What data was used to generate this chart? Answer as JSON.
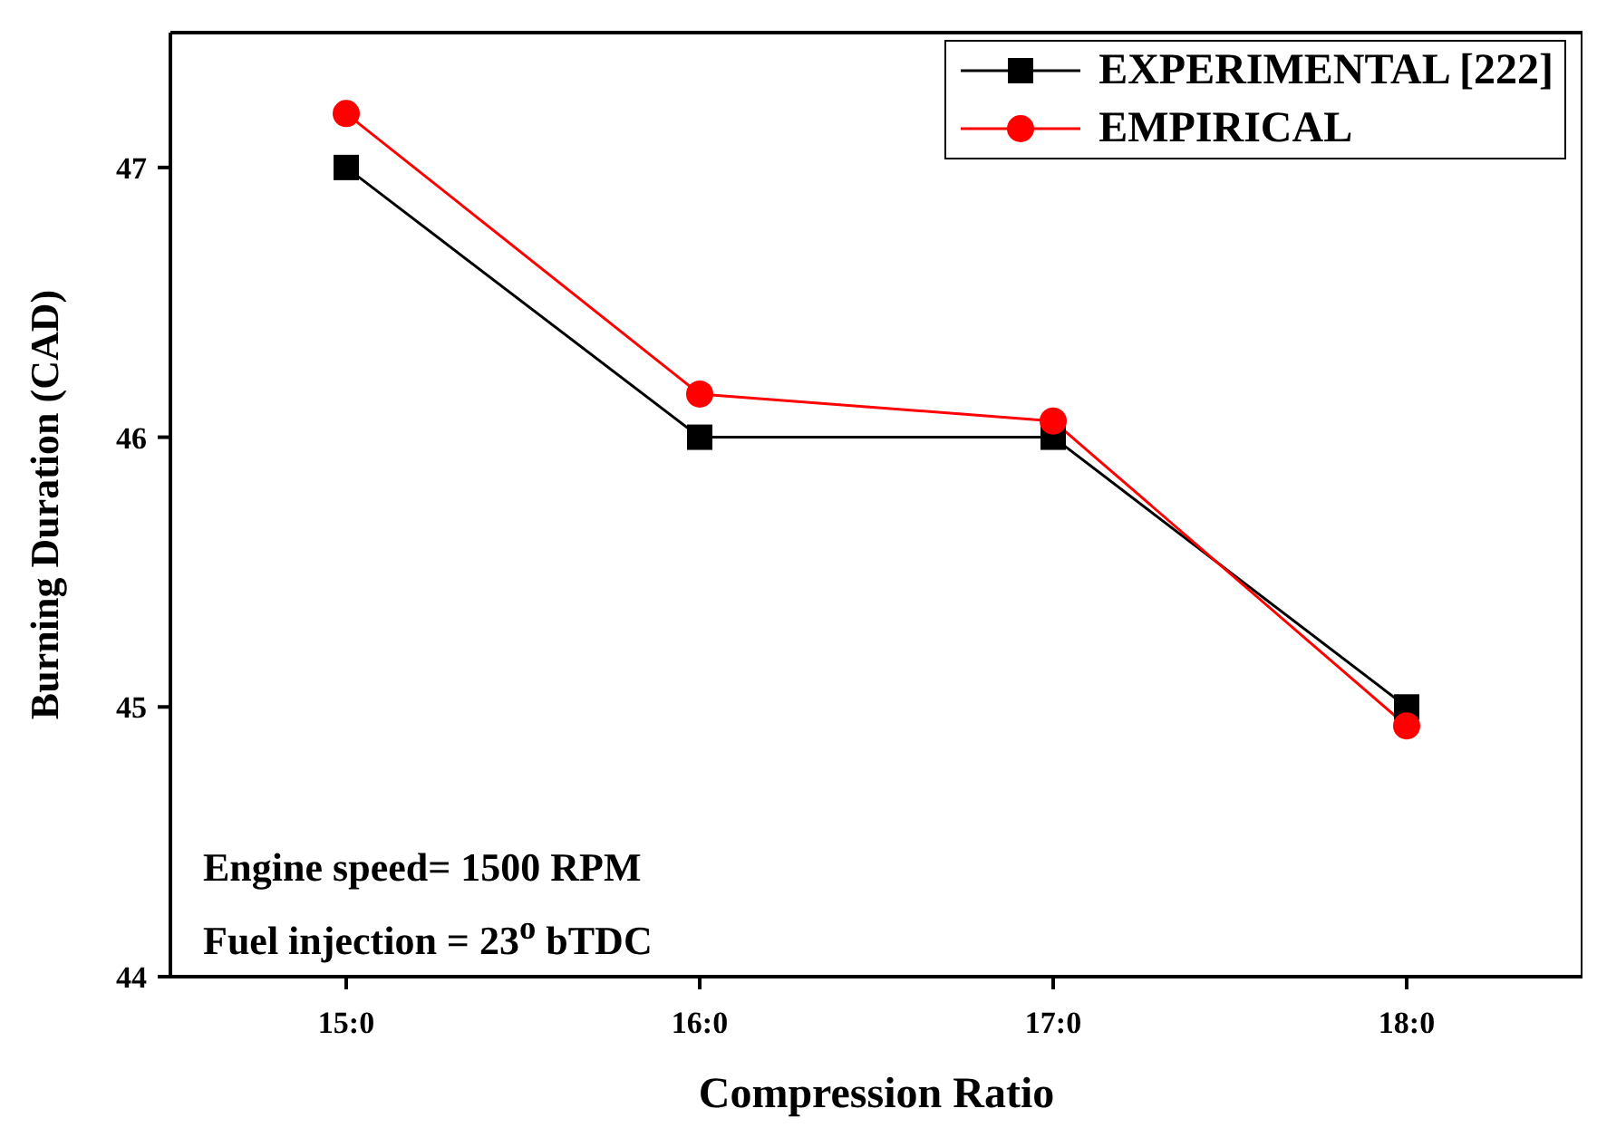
{
  "chart_data": {
    "type": "line",
    "xlabel": "Compression Ratio",
    "ylabel": "Burning Duration (CAD)",
    "categories": [
      "15:0",
      "16:0",
      "17:0",
      "18:0"
    ],
    "series": [
      {
        "name": "EXPERIMENTAL [222]",
        "color": "#000000",
        "marker": "square",
        "values": [
          47,
          46,
          46,
          45
        ]
      },
      {
        "name": "EMPIRICAL",
        "color": "#ff0000",
        "marker": "circle",
        "values": [
          47.2,
          46.16,
          46.06,
          44.93
        ]
      }
    ],
    "ylim": [
      44,
      47.5
    ],
    "yticks": [
      44,
      45,
      46,
      47
    ],
    "grid": false,
    "legend": "top right",
    "line_style": "solid",
    "annotations": [
      "Engine speed= 1500 RPM",
      "Fuel injection = 23$^{o}$ bTDC"
    ]
  }
}
